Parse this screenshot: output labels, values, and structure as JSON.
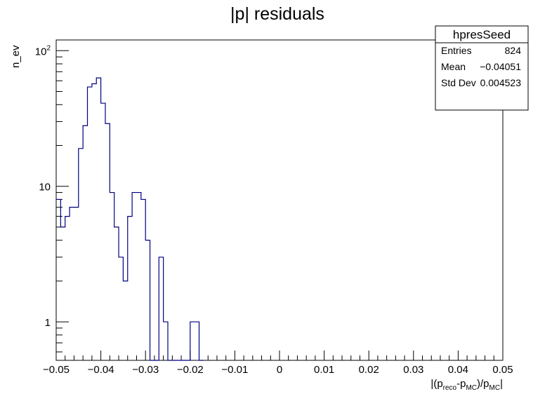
{
  "chart_data": {
    "type": "histogram",
    "title": "|p| residuals",
    "ylabel": "n_ev",
    "xlabel": {
      "prefix": "|(p",
      "sub1": "reco",
      "mid": "-p",
      "sub2": "MC",
      "mid2": ")/p",
      "sub3": "MC",
      "suffix": "|"
    },
    "xlim": [
      -0.05,
      0.05
    ],
    "ylim": [
      0.52,
      120
    ],
    "yscale": "log",
    "grid": false,
    "line_color": "#00007f",
    "bin_width": 0.001,
    "x_ticks": [
      "-0.05",
      "-0.04",
      "-0.03",
      "-0.02",
      "-0.01",
      "0",
      "0.01",
      "0.02",
      "0.03",
      "0.04",
      "0.05"
    ],
    "x_tick_values": [
      -0.05,
      -0.04,
      -0.03,
      -0.02,
      -0.01,
      0,
      0.01,
      0.02,
      0.03,
      0.04,
      0.05
    ],
    "y_ticks": [
      {
        "value": 1,
        "base": "1",
        "exp": ""
      },
      {
        "value": 10,
        "base": "10",
        "exp": ""
      },
      {
        "value": 100,
        "base": "10",
        "exp": "2"
      }
    ],
    "bins": [
      {
        "x_low": -0.05,
        "count": 8
      },
      {
        "x_low": -0.049,
        "count": 5
      },
      {
        "x_low": -0.048,
        "count": 6
      },
      {
        "x_low": -0.047,
        "count": 7
      },
      {
        "x_low": -0.046,
        "count": 7
      },
      {
        "x_low": -0.045,
        "count": 19
      },
      {
        "x_low": -0.044,
        "count": 28
      },
      {
        "x_low": -0.043,
        "count": 54
      },
      {
        "x_low": -0.042,
        "count": 57
      },
      {
        "x_low": -0.041,
        "count": 63
      },
      {
        "x_low": -0.04,
        "count": 41
      },
      {
        "x_low": -0.039,
        "count": 29
      },
      {
        "x_low": -0.038,
        "count": 9
      },
      {
        "x_low": -0.037,
        "count": 5
      },
      {
        "x_low": -0.036,
        "count": 3
      },
      {
        "x_low": -0.035,
        "count": 2
      },
      {
        "x_low": -0.034,
        "count": 6
      },
      {
        "x_low": -0.033,
        "count": 9
      },
      {
        "x_low": -0.032,
        "count": 9
      },
      {
        "x_low": -0.031,
        "count": 8
      },
      {
        "x_low": -0.03,
        "count": 4
      },
      {
        "x_low": -0.029,
        "count": 0
      },
      {
        "x_low": -0.028,
        "count": 0
      },
      {
        "x_low": -0.027,
        "count": 3
      },
      {
        "x_low": -0.026,
        "count": 1
      },
      {
        "x_low": -0.025,
        "count": 0
      },
      {
        "x_low": -0.024,
        "count": 0
      },
      {
        "x_low": -0.023,
        "count": 0
      },
      {
        "x_low": -0.022,
        "count": 0
      },
      {
        "x_low": -0.021,
        "count": 0
      },
      {
        "x_low": -0.02,
        "count": 1
      },
      {
        "x_low": -0.019,
        "count": 1
      },
      {
        "x_low": -0.018,
        "count": 0
      }
    ],
    "stats_box": {
      "name": "hpresSeed",
      "rows": [
        {
          "label": "Entries",
          "value": "824"
        },
        {
          "label": "Mean",
          "value": "−0.04051"
        },
        {
          "label": "Std Dev",
          "value": "0.004523"
        }
      ]
    }
  }
}
